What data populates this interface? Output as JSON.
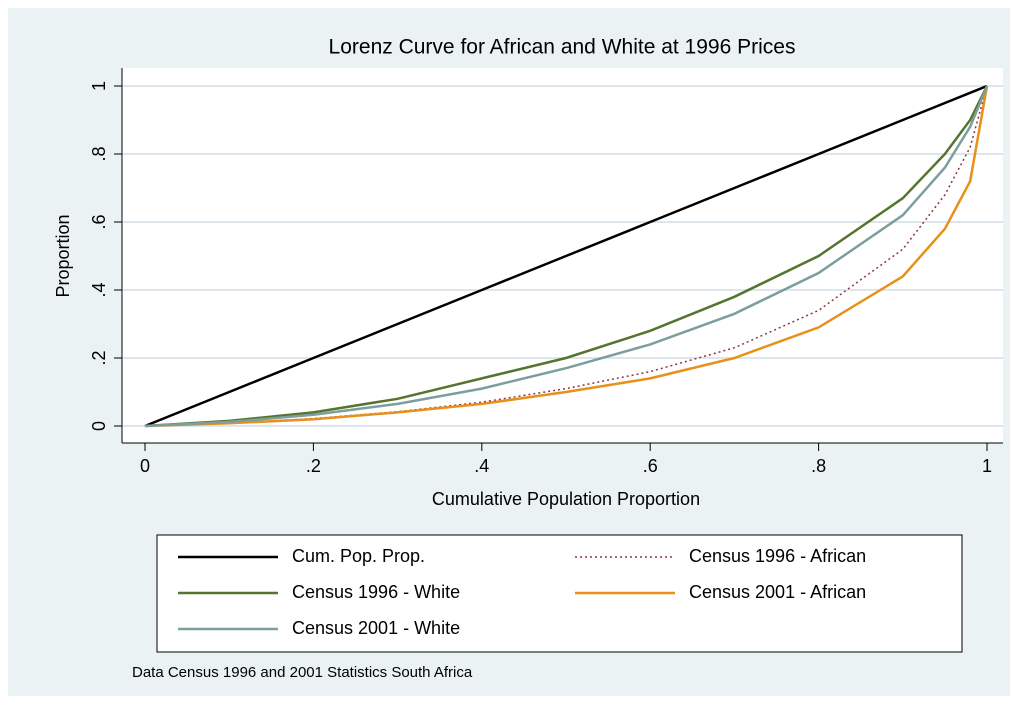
{
  "chart_data": {
    "type": "line",
    "title": "Lorenz Curve for African and White at 1996 Prices",
    "x_label": "Cumulative Population Proportion",
    "y_label": "Proportion",
    "note": "Data Census 1996 and 2001 Statistics South Africa",
    "x": [
      0,
      0.1,
      0.2,
      0.3,
      0.4,
      0.5,
      0.6,
      0.7,
      0.8,
      0.9,
      0.95,
      0.98,
      1
    ],
    "series": [
      {
        "name": "Cum. Pop. Prop.",
        "color": "#000000",
        "style": "solid",
        "values": [
          0,
          0.1,
          0.2,
          0.3,
          0.4,
          0.5,
          0.6,
          0.7,
          0.8,
          0.9,
          0.95,
          0.98,
          1
        ]
      },
      {
        "name": "Census 1996 - African",
        "color": "#90353b",
        "style": "dotted",
        "values": [
          0,
          0.008,
          0.022,
          0.042,
          0.07,
          0.11,
          0.16,
          0.23,
          0.34,
          0.52,
          0.68,
          0.82,
          1
        ]
      },
      {
        "name": "Census 1996 - White",
        "color": "#55752f",
        "style": "solid",
        "values": [
          0,
          0.015,
          0.04,
          0.08,
          0.14,
          0.2,
          0.28,
          0.38,
          0.5,
          0.67,
          0.8,
          0.9,
          1
        ]
      },
      {
        "name": "Census 2001 - African",
        "color": "#e8901a",
        "style": "solid",
        "values": [
          0,
          0.008,
          0.02,
          0.04,
          0.065,
          0.1,
          0.14,
          0.2,
          0.29,
          0.44,
          0.58,
          0.72,
          1
        ]
      },
      {
        "name": "Census 2001 - White",
        "color": "#7c9e9c",
        "style": "solid",
        "values": [
          0,
          0.012,
          0.033,
          0.065,
          0.11,
          0.17,
          0.24,
          0.33,
          0.45,
          0.62,
          0.76,
          0.88,
          1
        ]
      }
    ],
    "xlim": [
      0,
      1
    ],
    "ylim": [
      0,
      1
    ],
    "xticks": [
      0,
      {
        "value": 0.2,
        "label": ".2"
      },
      {
        "value": 0.4,
        "label": ".4"
      },
      {
        "value": 0.6,
        "label": ".6"
      },
      {
        "value": 0.8,
        "label": ".8"
      },
      1
    ],
    "yticks": [
      0,
      {
        "value": 0.2,
        "label": ".2"
      },
      {
        "value": 0.4,
        "label": ".4"
      },
      {
        "value": 0.6,
        "label": ".6"
      },
      {
        "value": 0.8,
        "label": ".8"
      },
      1
    ],
    "grid": true,
    "legend": "bottom"
  }
}
